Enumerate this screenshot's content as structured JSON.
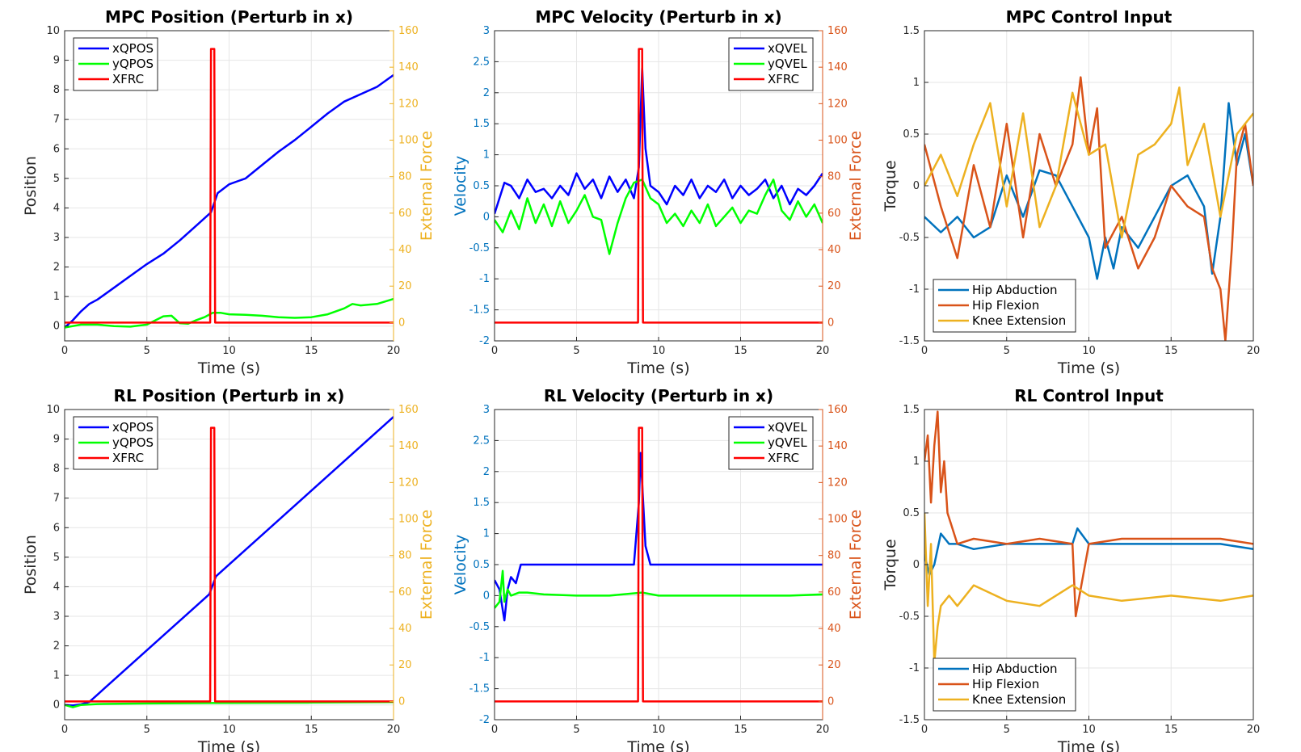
{
  "colors": {
    "xqpos": "#0000ff",
    "yqpos": "#00ff00",
    "xfrc": "#ff0000",
    "hip_abduction": "#0072bd",
    "hip_flexion": "#d95319",
    "knee_extension": "#edb120",
    "force_axis_position": "#edb120",
    "force_axis_velocity": "#d95319",
    "velocity_axis": "#0072bd",
    "grid": "#e6e6e6"
  },
  "chart_data": [
    {
      "type": "line",
      "title": "MPC Position (Perturb in x)",
      "xlabel": "Time (s)",
      "ylabel": "Position",
      "ylabel_right": "External Force",
      "xlim": [
        0,
        20
      ],
      "ylim": [
        -0.5,
        10
      ],
      "ylim_right": [
        -10,
        160
      ],
      "xticks": [
        "0",
        "5",
        "10",
        "15",
        "20"
      ],
      "yticks": [
        "0",
        "1",
        "2",
        "3",
        "4",
        "5",
        "6",
        "7",
        "8",
        "9",
        "10"
      ],
      "yticks_right": [
        "0",
        "20",
        "40",
        "60",
        "80",
        "100",
        "120",
        "140",
        "160"
      ],
      "grid": true,
      "legend_position": "top-left",
      "series": [
        {
          "name": "xQPOS",
          "axis": "left",
          "color_key": "xqpos",
          "x": [
            0,
            0.5,
            1,
            1.5,
            2,
            3,
            4,
            5,
            6,
            7,
            8,
            8.9,
            9.3,
            10,
            10.5,
            11,
            12,
            13,
            14,
            15,
            16,
            17,
            18,
            19,
            20
          ],
          "y": [
            -0.05,
            0.2,
            0.5,
            0.75,
            0.9,
            1.3,
            1.7,
            2.1,
            2.45,
            2.9,
            3.4,
            3.85,
            4.5,
            4.8,
            4.9,
            5.0,
            5.45,
            5.9,
            6.3,
            6.75,
            7.2,
            7.6,
            7.85,
            8.1,
            8.5
          ]
        },
        {
          "name": "yQPOS",
          "axis": "left",
          "color_key": "yqpos",
          "x": [
            0,
            1,
            2,
            3,
            4,
            5,
            6,
            6.5,
            7,
            7.5,
            8,
            8.5,
            9,
            9.5,
            10,
            11,
            12,
            13,
            14,
            15,
            16,
            17,
            17.5,
            18,
            19,
            20
          ],
          "y": [
            -0.05,
            0.05,
            0.05,
            0.0,
            -0.02,
            0.05,
            0.33,
            0.35,
            0.1,
            0.08,
            0.2,
            0.3,
            0.45,
            0.45,
            0.4,
            0.38,
            0.35,
            0.3,
            0.28,
            0.3,
            0.4,
            0.6,
            0.75,
            0.7,
            0.75,
            0.92
          ]
        },
        {
          "name": "XFRC",
          "axis": "right",
          "color_key": "xfrc",
          "x": [
            0,
            8.85,
            8.9,
            9.1,
            9.15,
            20
          ],
          "y": [
            0,
            0,
            150,
            150,
            0,
            0
          ]
        }
      ]
    },
    {
      "type": "line",
      "title": "MPC Velocity (Perturb in x)",
      "xlabel": "Time (s)",
      "ylabel": "Velocity",
      "ylabel_right": "External Force",
      "xlim": [
        0,
        20
      ],
      "ylim": [
        -2,
        3
      ],
      "ylim_right": [
        -10,
        160
      ],
      "xticks": [
        "0",
        "5",
        "10",
        "15",
        "20"
      ],
      "yticks": [
        "-2",
        "-1.5",
        "-1",
        "-0.5",
        "0",
        "0.5",
        "1",
        "1.5",
        "2",
        "2.5",
        "3"
      ],
      "yticks_right": [
        "0",
        "20",
        "40",
        "60",
        "80",
        "100",
        "120",
        "140",
        "160"
      ],
      "grid": true,
      "legend_position": "top-right",
      "series": [
        {
          "name": "xQVEL",
          "axis": "left",
          "color_key": "xqpos",
          "x": [
            0,
            0.3,
            0.6,
            1,
            1.5,
            2,
            2.5,
            3,
            3.5,
            4,
            4.5,
            5,
            5.5,
            6,
            6.5,
            7,
            7.5,
            8,
            8.5,
            8.8,
            9,
            9.2,
            9.5,
            10,
            10.5,
            11,
            11.5,
            12,
            12.5,
            13,
            13.5,
            14,
            14.5,
            15,
            15.5,
            16,
            16.5,
            17,
            17.5,
            18,
            18.5,
            19,
            19.5,
            20
          ],
          "y": [
            0.05,
            0.3,
            0.55,
            0.5,
            0.3,
            0.6,
            0.4,
            0.45,
            0.3,
            0.5,
            0.35,
            0.7,
            0.45,
            0.6,
            0.3,
            0.65,
            0.4,
            0.6,
            0.3,
            0.8,
            2.4,
            1.1,
            0.5,
            0.4,
            0.2,
            0.5,
            0.35,
            0.6,
            0.3,
            0.5,
            0.4,
            0.6,
            0.3,
            0.5,
            0.35,
            0.45,
            0.6,
            0.3,
            0.5,
            0.2,
            0.45,
            0.35,
            0.5,
            0.7
          ]
        },
        {
          "name": "yQVEL",
          "axis": "left",
          "color_key": "yqpos",
          "x": [
            0,
            0.5,
            1,
            1.5,
            2,
            2.5,
            3,
            3.5,
            4,
            4.5,
            5,
            5.5,
            6,
            6.5,
            7,
            7.5,
            8,
            8.5,
            9,
            9.5,
            10,
            10.5,
            11,
            11.5,
            12,
            12.5,
            13,
            13.5,
            14,
            14.5,
            15,
            15.5,
            16,
            16.5,
            17,
            17.5,
            18,
            18.5,
            19,
            19.5,
            20
          ],
          "y": [
            -0.05,
            -0.25,
            0.1,
            -0.2,
            0.3,
            -0.1,
            0.2,
            -0.15,
            0.25,
            -0.1,
            0.1,
            0.35,
            0.0,
            -0.05,
            -0.6,
            -0.1,
            0.3,
            0.55,
            0.6,
            0.3,
            0.2,
            -0.1,
            0.05,
            -0.15,
            0.1,
            -0.1,
            0.2,
            -0.15,
            0.0,
            0.15,
            -0.1,
            0.1,
            0.05,
            0.35,
            0.6,
            0.1,
            -0.05,
            0.25,
            0.0,
            0.2,
            -0.1
          ]
        },
        {
          "name": "XFRC",
          "axis": "right",
          "color_key": "xfrc",
          "x": [
            0,
            8.75,
            8.8,
            9.0,
            9.05,
            20
          ],
          "y": [
            0,
            0,
            150,
            150,
            0,
            0
          ]
        }
      ]
    },
    {
      "type": "line",
      "title": "MPC Control Input",
      "xlabel": "Time (s)",
      "ylabel": "Torque",
      "xlim": [
        0,
        20
      ],
      "ylim": [
        -1.5,
        1.5
      ],
      "xticks": [
        "0",
        "5",
        "10",
        "15",
        "20"
      ],
      "yticks": [
        "-1.5",
        "-1",
        "-0.5",
        "0",
        "0.5",
        "1",
        "1.5"
      ],
      "grid": true,
      "legend_position": "bottom-left",
      "series": [
        {
          "name": "Hip Abduction",
          "color_key": "hip_abduction",
          "x": [
            0,
            1,
            2,
            3,
            4,
            5,
            6,
            7,
            8,
            9,
            10,
            10.5,
            11,
            11.5,
            12,
            13,
            14,
            15,
            16,
            17,
            17.5,
            18,
            18.5,
            19,
            19.5,
            20
          ],
          "y": [
            -0.3,
            -0.45,
            -0.3,
            -0.5,
            -0.4,
            0.1,
            -0.3,
            0.15,
            0.1,
            -0.2,
            -0.5,
            -0.9,
            -0.5,
            -0.8,
            -0.4,
            -0.6,
            -0.3,
            0.0,
            0.1,
            -0.2,
            -0.85,
            -0.3,
            0.8,
            0.2,
            0.5,
            0.0
          ]
        },
        {
          "name": "Hip Flexion",
          "color_key": "hip_flexion",
          "x": [
            0,
            1,
            2,
            3,
            4,
            5,
            6,
            7,
            8,
            9,
            9.5,
            10,
            10.5,
            11,
            12,
            13,
            14,
            15,
            16,
            17,
            17.5,
            18,
            18.3,
            18.7,
            19,
            19.5,
            20
          ],
          "y": [
            0.4,
            -0.2,
            -0.7,
            0.2,
            -0.4,
            0.6,
            -0.5,
            0.5,
            0.0,
            0.4,
            1.05,
            0.3,
            0.75,
            -0.6,
            -0.3,
            -0.8,
            -0.5,
            0.0,
            -0.2,
            -0.3,
            -0.8,
            -1.0,
            -1.5,
            -0.6,
            0.3,
            0.6,
            0.0
          ]
        },
        {
          "name": "Knee Extension",
          "color_key": "knee_extension",
          "x": [
            0,
            1,
            2,
            3,
            4,
            5,
            6,
            7,
            8,
            9,
            10,
            11,
            12,
            13,
            14,
            15,
            15.5,
            16,
            17,
            18,
            19,
            20
          ],
          "y": [
            0.0,
            0.3,
            -0.1,
            0.4,
            0.8,
            -0.2,
            0.7,
            -0.4,
            0.0,
            0.9,
            0.3,
            0.4,
            -0.5,
            0.3,
            0.4,
            0.6,
            0.95,
            0.2,
            0.6,
            -0.3,
            0.5,
            0.7
          ]
        }
      ]
    },
    {
      "type": "line",
      "title": "RL Position (Perturb in x)",
      "xlabel": "Time (s)",
      "ylabel": "Position",
      "ylabel_right": "External Force",
      "xlim": [
        0,
        20
      ],
      "ylim": [
        -0.5,
        10
      ],
      "ylim_right": [
        -10,
        160
      ],
      "xticks": [
        "0",
        "5",
        "10",
        "15",
        "20"
      ],
      "yticks": [
        "0",
        "1",
        "2",
        "3",
        "4",
        "5",
        "6",
        "7",
        "8",
        "9",
        "10"
      ],
      "yticks_right": [
        "0",
        "20",
        "40",
        "60",
        "80",
        "100",
        "120",
        "140",
        "160"
      ],
      "grid": true,
      "legend_position": "top-left",
      "series": [
        {
          "name": "xQPOS",
          "axis": "left",
          "color_key": "xqpos",
          "x": [
            0,
            0.5,
            1,
            1.5,
            2,
            8.8,
            9.2,
            20
          ],
          "y": [
            0.0,
            -0.02,
            0.02,
            0.1,
            0.35,
            3.75,
            4.35,
            9.75
          ]
        },
        {
          "name": "yQPOS",
          "axis": "left",
          "color_key": "yqpos",
          "x": [
            0,
            0.5,
            1,
            2,
            5,
            10,
            15,
            20
          ],
          "y": [
            0.0,
            -0.08,
            0.0,
            0.03,
            0.05,
            0.07,
            0.08,
            0.1
          ]
        },
        {
          "name": "XFRC",
          "axis": "right",
          "color_key": "xfrc",
          "x": [
            0,
            8.85,
            8.9,
            9.1,
            9.15,
            20
          ],
          "y": [
            0,
            0,
            150,
            150,
            0,
            0
          ]
        }
      ]
    },
    {
      "type": "line",
      "title": "RL Velocity (Perturb in x)",
      "xlabel": "Time (s)",
      "ylabel": "Velocity",
      "ylabel_right": "External Force",
      "xlim": [
        0,
        20
      ],
      "ylim": [
        -2,
        3
      ],
      "ylim_right": [
        -10,
        160
      ],
      "xticks": [
        "0",
        "5",
        "10",
        "15",
        "20"
      ],
      "yticks": [
        "-2",
        "-1.5",
        "-1",
        "-0.5",
        "0",
        "0.5",
        "1",
        "1.5",
        "2",
        "2.5",
        "3"
      ],
      "yticks_right": [
        "0",
        "20",
        "40",
        "60",
        "80",
        "100",
        "120",
        "140",
        "160"
      ],
      "grid": true,
      "legend_position": "top-right",
      "series": [
        {
          "name": "xQVEL",
          "axis": "left",
          "color_key": "xqpos",
          "x": [
            0,
            0.3,
            0.6,
            0.8,
            1,
            1.3,
            1.6,
            2,
            3,
            5,
            7,
            8.5,
            8.8,
            8.9,
            9.2,
            9.5,
            10,
            12,
            14,
            16,
            18,
            20
          ],
          "y": [
            0.25,
            0.1,
            -0.4,
            0.1,
            0.3,
            0.2,
            0.5,
            0.5,
            0.5,
            0.5,
            0.5,
            0.5,
            1.5,
            2.3,
            0.8,
            0.5,
            0.5,
            0.5,
            0.5,
            0.5,
            0.5,
            0.5
          ]
        },
        {
          "name": "yQVEL",
          "axis": "left",
          "color_key": "yqpos",
          "x": [
            0,
            0.3,
            0.5,
            0.6,
            0.8,
            1,
            1.5,
            2,
            3,
            5,
            7,
            9,
            10,
            12,
            14,
            16,
            18,
            20
          ],
          "y": [
            -0.2,
            -0.1,
            0.4,
            -0.1,
            0.1,
            0.0,
            0.05,
            0.05,
            0.02,
            0.0,
            0.0,
            0.05,
            0.0,
            0.0,
            0.0,
            0.0,
            0.0,
            0.02
          ]
        },
        {
          "name": "XFRC",
          "axis": "right",
          "color_key": "xfrc",
          "x": [
            0,
            8.75,
            8.8,
            9.0,
            9.05,
            20
          ],
          "y": [
            0,
            0,
            150,
            150,
            0,
            0
          ]
        }
      ]
    },
    {
      "type": "line",
      "title": "RL Control Input",
      "xlabel": "Time (s)",
      "ylabel": "Torque",
      "xlim": [
        0,
        20
      ],
      "ylim": [
        -1.5,
        1.5
      ],
      "xticks": [
        "0",
        "5",
        "10",
        "15",
        "20"
      ],
      "yticks": [
        "-1.5",
        "-1",
        "-0.5",
        "0",
        "0.5",
        "1",
        "1.5"
      ],
      "grid": true,
      "legend_position": "bottom-left",
      "series": [
        {
          "name": "Hip Abduction",
          "color_key": "hip_abduction",
          "x": [
            0,
            0.3,
            0.6,
            1,
            1.5,
            2,
            3,
            5,
            7,
            9,
            9.3,
            10,
            12,
            15,
            18,
            20
          ],
          "y": [
            0.1,
            -0.1,
            0.0,
            0.3,
            0.2,
            0.2,
            0.15,
            0.2,
            0.2,
            0.2,
            0.35,
            0.2,
            0.2,
            0.2,
            0.2,
            0.15
          ]
        },
        {
          "name": "Hip Flexion",
          "color_key": "hip_flexion",
          "x": [
            0,
            0.2,
            0.4,
            0.6,
            0.8,
            1.0,
            1.2,
            1.4,
            1.6,
            2,
            3,
            5,
            7,
            9,
            9.2,
            10,
            12,
            15,
            18,
            20
          ],
          "y": [
            1.0,
            1.25,
            0.6,
            1.15,
            1.48,
            0.7,
            1.0,
            0.5,
            0.4,
            0.2,
            0.25,
            0.2,
            0.25,
            0.2,
            -0.5,
            0.2,
            0.25,
            0.25,
            0.25,
            0.2
          ]
        },
        {
          "name": "Knee Extension",
          "color_key": "knee_extension",
          "x": [
            0,
            0.2,
            0.4,
            0.6,
            0.8,
            1.0,
            1.5,
            2,
            3,
            5,
            7,
            9,
            10,
            12,
            15,
            18,
            20
          ],
          "y": [
            0.5,
            -0.4,
            0.2,
            -0.95,
            -0.6,
            -0.4,
            -0.3,
            -0.4,
            -0.2,
            -0.35,
            -0.4,
            -0.2,
            -0.3,
            -0.35,
            -0.3,
            -0.35,
            -0.3
          ]
        }
      ]
    }
  ]
}
